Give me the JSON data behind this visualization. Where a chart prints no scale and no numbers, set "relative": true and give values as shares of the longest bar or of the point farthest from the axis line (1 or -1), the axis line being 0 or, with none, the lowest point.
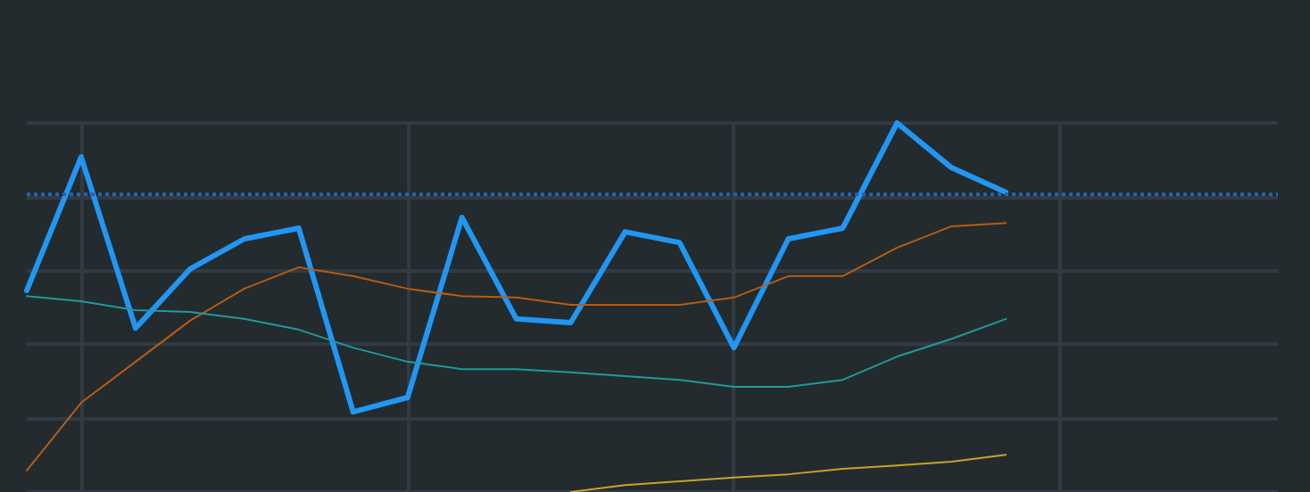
{
  "chart_data": {
    "type": "line",
    "relative": true,
    "grid": true,
    "marker": "none",
    "line_style": "solid",
    "categories": [
      null,
      null,
      null,
      null,
      null,
      null,
      null,
      null,
      null,
      null,
      null,
      null,
      null,
      null,
      null,
      null,
      null,
      null,
      null,
      null,
      null,
      null,
      null,
      null
    ],
    "series": [
      {
        "color": "#2196f3",
        "values": [
          0.546,
          0.908,
          0.444,
          0.604,
          0.686,
          0.715,
          0.217,
          0.256,
          0.744,
          0.469,
          0.459,
          0.705,
          0.676,
          0.391,
          0.686,
          0.715,
          1,
          0.879,
          0.812,
          null,
          null,
          null,
          null,
          null
        ]
      },
      {
        "color": "#b85c14",
        "values": [
          0.058,
          0.242,
          0.353,
          0.464,
          0.551,
          0.609,
          0.585,
          0.551,
          0.531,
          0.527,
          0.507,
          0.507,
          0.507,
          0.527,
          0.585,
          0.585,
          0.662,
          0.72,
          0.729,
          null,
          null,
          null,
          null,
          null
        ]
      },
      {
        "color": "#1f9a9e",
        "values": [
          0.531,
          0.517,
          0.493,
          0.488,
          0.469,
          0.44,
          0.391,
          0.353,
          0.333,
          0.333,
          0.324,
          0.314,
          0.304,
          0.285,
          0.285,
          0.304,
          0.367,
          0.415,
          0.469,
          null,
          null,
          null,
          null,
          null
        ]
      },
      {
        "color": "#c9a227",
        "values": [
          null,
          null,
          null,
          null,
          null,
          null,
          null,
          null,
          null,
          null,
          0,
          0.019,
          0.029,
          0.039,
          0.048,
          0.063,
          0.072,
          0.082,
          0.101,
          null,
          null,
          null,
          null,
          null
        ]
      }
    ],
    "ref_lines": [
      {
        "axis": "y",
        "value": 0.812,
        "color": "#2962a8",
        "line_style": "dotted"
      }
    ]
  }
}
